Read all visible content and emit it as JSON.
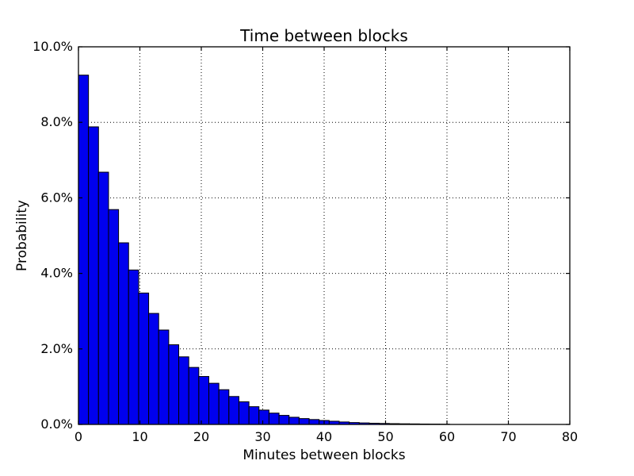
{
  "chart_data": {
    "type": "bar",
    "title": "Time between blocks",
    "xlabel": "Minutes between blocks",
    "ylabel": "Probability",
    "xlim": [
      0,
      80
    ],
    "ylim_percent": [
      0,
      10
    ],
    "x_ticks": [
      0,
      10,
      20,
      30,
      40,
      50,
      60,
      70,
      80
    ],
    "x_tick_labels": [
      "0",
      "10",
      "20",
      "30",
      "40",
      "50",
      "60",
      "70",
      "80"
    ],
    "y_ticks": [
      0,
      2,
      4,
      6,
      8,
      10
    ],
    "y_tick_labels": [
      "0.0%",
      "2.0%",
      "4.0%",
      "6.0%",
      "8.0%",
      "10.0%"
    ],
    "grid": true,
    "grid_style": "dotted",
    "bin_start_minutes": 0,
    "bin_width_minutes": 1.6327,
    "values_percent": [
      9.25,
      7.88,
      6.68,
      5.69,
      4.81,
      4.09,
      3.48,
      2.94,
      2.5,
      2.11,
      1.79,
      1.51,
      1.27,
      1.09,
      0.92,
      0.74,
      0.6,
      0.47,
      0.38,
      0.3,
      0.24,
      0.19,
      0.155,
      0.13,
      0.105,
      0.085,
      0.065,
      0.05,
      0.04,
      0.032,
      0.026,
      0.021,
      0.017,
      0.014,
      0.011,
      0.009,
      0.007,
      0.006,
      0.005,
      0.004,
      0.003,
      0.003,
      0.002,
      0.002,
      0.002,
      0.001,
      0.001,
      0.001,
      0.001
    ],
    "bar_color": "#0000ee",
    "bar_edge_color": "#000000",
    "axes_color": "#000000",
    "background_color": "#ffffff"
  }
}
